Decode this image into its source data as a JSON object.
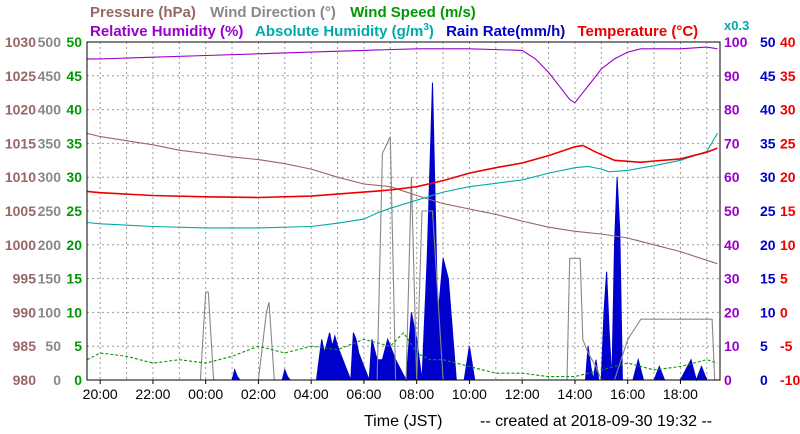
{
  "chart_data": {
    "type": "line",
    "legend": {
      "row1": [
        {
          "label": "Pressure (hPa)",
          "color": "#996666"
        },
        {
          "label": "Wind Direction (°)",
          "color": "#888888"
        },
        {
          "label": "Wind Speed (m/s)",
          "color": "#009900"
        }
      ],
      "row2": [
        {
          "label": "Relative Humidity (%)",
          "color": "#9900cc"
        },
        {
          "label": "Absolute Humidity (g/m",
          "color": "#00aaaa"
        },
        {
          "label": "Rain Rate(mm/h)",
          "color": "#0000cc"
        },
        {
          "label": "Temperature  (°C)",
          "color": "#ee0000"
        }
      ],
      "abs_humidity_sup": "3",
      "abs_humidity_close": ")",
      "temp_scale_note": "x0.3"
    },
    "left_axes": {
      "pressure": {
        "color": "#996666",
        "ticks": [
          "1030",
          "1025",
          "1020",
          "1015",
          "1010",
          "1005",
          "1000",
          "995",
          "990",
          "985",
          "980"
        ]
      },
      "wind_direction": {
        "color": "#888888",
        "ticks": [
          "500",
          "450",
          "400",
          "350",
          "300",
          "250",
          "200",
          "150",
          "100",
          "50",
          "0"
        ]
      },
      "wind_speed": {
        "color": "#009900",
        "ticks": [
          "50",
          "45",
          "40",
          "35",
          "30",
          "25",
          "20",
          "15",
          "10",
          "5",
          "0"
        ]
      }
    },
    "right_axes": {
      "relative_humidity": {
        "color": "#9900cc",
        "ticks": [
          "100",
          "90",
          "80",
          "70",
          "60",
          "50",
          "40",
          "30",
          "20",
          "10",
          "0"
        ]
      },
      "rain_rate": {
        "color": "#0000cc",
        "ticks": [
          "50",
          "45",
          "40",
          "35",
          "30",
          "25",
          "20",
          "15",
          "10",
          "5",
          "0"
        ]
      },
      "temperature": {
        "color": "#ee0000",
        "ticks": [
          "40",
          "35",
          "30",
          "25",
          "20",
          "15",
          "10",
          "5",
          "0",
          "-5",
          "-10"
        ]
      }
    },
    "x_ticks": [
      "20:00",
      "22:00",
      "00:00",
      "02:00",
      "04:00",
      "06:00",
      "08:00",
      "10:00",
      "12:00",
      "14:00",
      "16:00",
      "18:00"
    ],
    "x_range_hours": [
      19.5,
      43.5
    ],
    "grid": true,
    "xlabel": "Time (JST)",
    "footer": "-- created at 2018-09-30 19:32 --",
    "series": [
      {
        "name": "Pressure (hPa)",
        "color": "#996666",
        "axis": "pressure",
        "x": [
          19.5,
          20,
          21,
          22,
          23,
          24,
          25,
          26,
          27,
          28,
          29,
          30,
          31,
          32,
          33,
          34,
          35,
          36,
          37,
          38,
          39,
          40,
          41,
          42,
          43,
          43.4
        ],
        "y": [
          1016.5,
          1016,
          1015.4,
          1014.8,
          1014,
          1013.5,
          1013,
          1012.6,
          1012,
          1011.2,
          1010,
          1009,
          1008.6,
          1007.3,
          1006.1,
          1005.3,
          1004.5,
          1003.5,
          1002.6,
          1002,
          1001.6,
          1001,
          1000,
          999,
          997.7,
          997.2
        ]
      },
      {
        "name": "Relative Humidity (%)",
        "color": "#9900cc",
        "axis": "relative_humidity",
        "x": [
          19.5,
          20,
          22,
          24,
          26,
          28,
          30,
          32,
          34,
          36,
          36.5,
          37,
          37.5,
          37.8,
          38,
          38.3,
          38.6,
          39,
          39.5,
          40,
          40.5,
          41,
          42,
          43,
          43.4
        ],
        "y": [
          95,
          95,
          95.5,
          96,
          96.5,
          97,
          97.5,
          98,
          98,
          97.5,
          95,
          91,
          86,
          83,
          82,
          85,
          88,
          92,
          95,
          97,
          98,
          98,
          98,
          98.5,
          98
        ]
      },
      {
        "name": "Absolute Humidity (g/m3)",
        "color": "#00aaaa",
        "axis": "temperature",
        "x": [
          19.5,
          20,
          22,
          24,
          26,
          28,
          29,
          30,
          30.5,
          31,
          32,
          33,
          34,
          35,
          36,
          37,
          38,
          38.5,
          39,
          39.3,
          40,
          41,
          42,
          43,
          43.4
        ],
        "y": [
          13.3,
          13.1,
          12.7,
          12.5,
          12.5,
          12.7,
          13.2,
          13.8,
          14.7,
          15.4,
          16.6,
          17.8,
          18.6,
          19.1,
          19.6,
          20.6,
          21.4,
          21.6,
          21.2,
          20.8,
          21,
          21.7,
          22.5,
          23.8,
          26.5
        ]
      },
      {
        "name": "Temperature (°C)",
        "color": "#ee0000",
        "axis": "temperature",
        "x": [
          19.5,
          20,
          22,
          24,
          26,
          28,
          30,
          31,
          32,
          33,
          34,
          35,
          36,
          37,
          38,
          38.3,
          38.8,
          39.5,
          40.5,
          41,
          42,
          43,
          43.4
        ],
        "y": [
          17.9,
          17.7,
          17.3,
          17.1,
          17.0,
          17.2,
          17.8,
          18.1,
          18.6,
          19.5,
          20.6,
          21.4,
          22.1,
          23.2,
          24.5,
          24.7,
          23.7,
          22.5,
          22.2,
          22.4,
          22.7,
          23.7,
          24.3
        ]
      },
      {
        "name": "Rain Rate (mm/h)",
        "color": "#0000cc",
        "axis": "rain_rate",
        "x": [
          19.5,
          25.0,
          25.1,
          25.2,
          25.3,
          26.9,
          27.0,
          27.1,
          27.2,
          28.2,
          28.3,
          28.4,
          28.5,
          28.7,
          28.8,
          28.9,
          29.0,
          29.2,
          29.5,
          29.6,
          29.7,
          29.8,
          30.2,
          30.3,
          30.5,
          30.7,
          30.9,
          31.2,
          31.6,
          31.8,
          32.0,
          32.2,
          32.4,
          32.6,
          32.8,
          33.0,
          33.2,
          33.5,
          33.8,
          34.0,
          34.2,
          34.5,
          38.4,
          38.5,
          38.6,
          38.7,
          38.8,
          38.9,
          39.0,
          39.1,
          39.2,
          39.3,
          39.4,
          39.5,
          39.6,
          39.7,
          39.8,
          40.2,
          40.4,
          40.6,
          40.8,
          41.0,
          41.2,
          41.4,
          41.6,
          42.0,
          42.4,
          42.6,
          42.8,
          43.0,
          43.4
        ],
        "y": [
          0,
          0,
          1.5,
          0.5,
          0,
          0,
          1.5,
          0.5,
          0,
          0,
          3,
          6,
          4,
          7,
          5,
          6.5,
          5,
          3,
          0,
          7,
          6,
          4,
          0,
          6,
          3,
          3,
          6,
          3,
          0,
          10,
          6,
          0,
          18,
          44,
          9,
          18,
          15,
          0,
          0,
          5,
          0,
          0,
          0,
          5,
          2,
          0,
          3,
          0,
          0,
          10,
          16,
          7,
          0,
          20,
          30,
          22,
          0,
          0,
          3,
          0,
          0,
          0,
          2,
          0,
          0,
          0,
          3,
          0,
          2,
          0,
          0
        ]
      },
      {
        "name": "Wind Direction (°)",
        "color": "#888888",
        "axis": "wind_direction",
        "x": [
          19.5,
          20,
          22,
          23.8,
          24.0,
          24.1,
          24.3,
          24.5,
          26,
          26.3,
          26.4,
          26.6,
          26.8,
          28,
          30,
          30.5,
          30.7,
          31.0,
          31.2,
          31.4,
          31.6,
          31.8,
          32.0,
          32.2,
          32.6,
          33,
          34,
          36,
          37.5,
          37.7,
          37.8,
          38.2,
          38.3,
          38.5,
          38.8,
          39.0,
          39.5,
          40,
          40.5,
          41,
          42,
          43,
          43.2,
          43.3,
          43.4
        ],
        "y": [
          0,
          0,
          0,
          0,
          130,
          130,
          0,
          0,
          0,
          100,
          115,
          0,
          0,
          0,
          0,
          0,
          335,
          360,
          0,
          0,
          0,
          300,
          0,
          250,
          250,
          0,
          0,
          0,
          0,
          0,
          180,
          180,
          60,
          40,
          20,
          0,
          0,
          60,
          90,
          90,
          90,
          90,
          90,
          0,
          0
        ]
      },
      {
        "name": "Wind Speed (m/s)",
        "color": "#009900",
        "axis": "wind_speed",
        "x": [
          19.5,
          20,
          21,
          22,
          23,
          24,
          25,
          26,
          27,
          28,
          29,
          30,
          31,
          31.5,
          32,
          32.5,
          33,
          34,
          35,
          36,
          37,
          38,
          39,
          40,
          41,
          42,
          43,
          43.4
        ],
        "y": [
          3,
          4,
          3.5,
          2.5,
          3,
          2.5,
          3.5,
          5,
          4,
          5,
          4.5,
          6,
          5,
          7,
          4,
          3,
          3,
          2,
          1,
          1,
          0.5,
          0.5,
          1.5,
          2.5,
          1.5,
          2,
          3,
          2.5
        ]
      }
    ]
  }
}
